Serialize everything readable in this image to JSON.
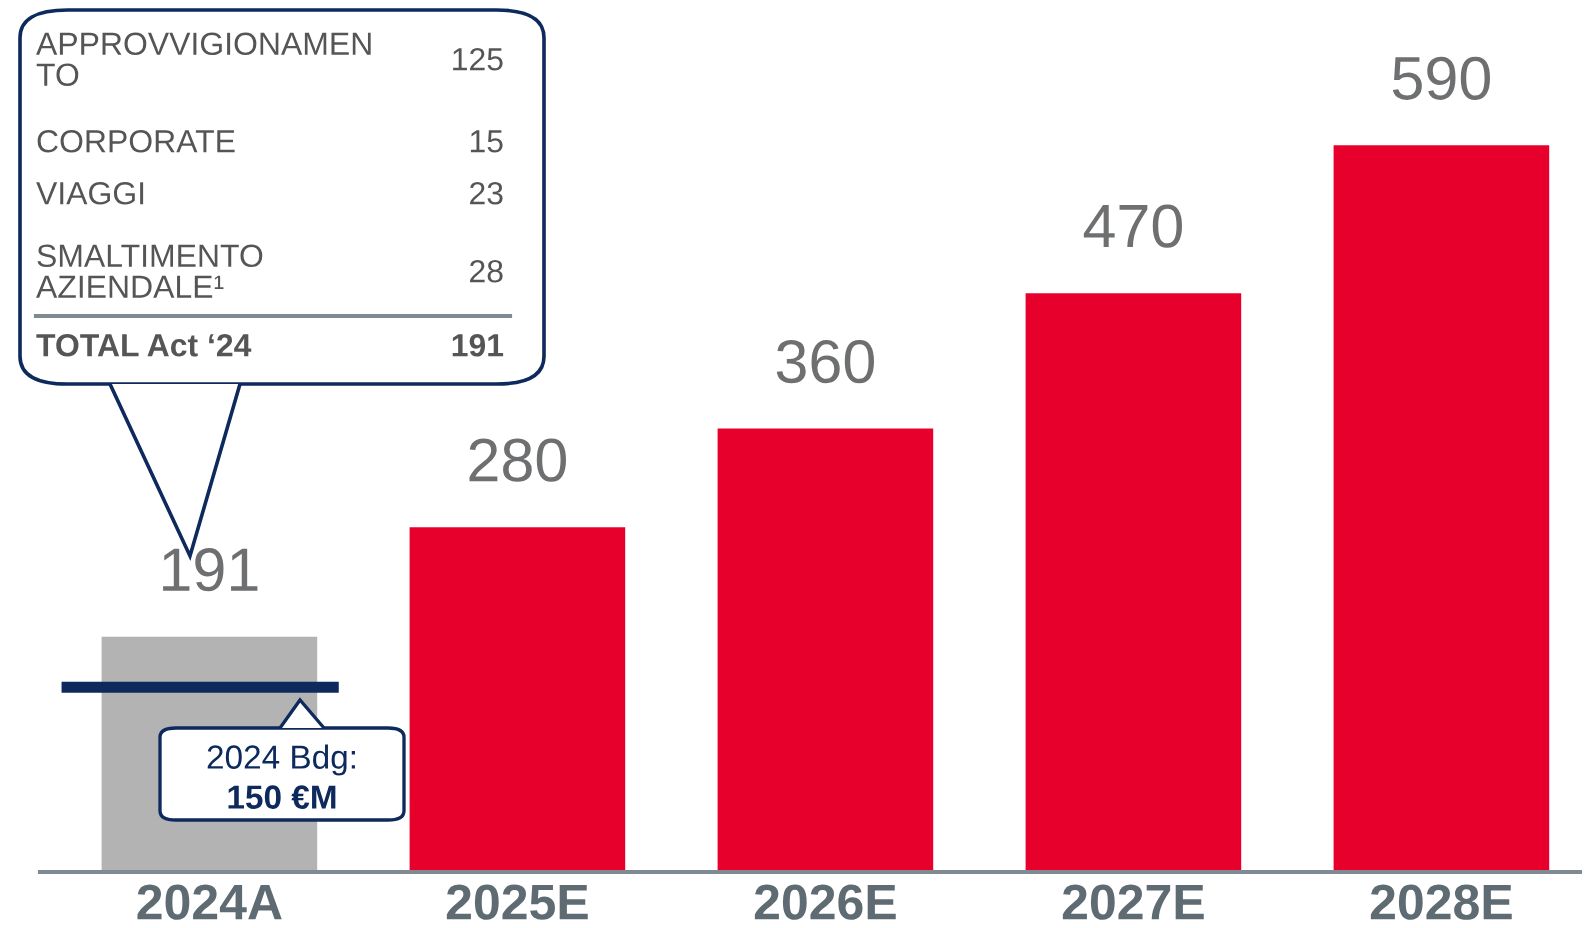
{
  "chart_data": {
    "type": "bar",
    "categories": [
      "2024A",
      "2025E",
      "2026E",
      "2027E",
      "2028E"
    ],
    "values": [
      191,
      280,
      360,
      470,
      590
    ],
    "colors": [
      "#b3b3b3",
      "#e8002d",
      "#e8002d",
      "#e8002d",
      "#e8002d"
    ],
    "data_labels": true,
    "ref_lines": [
      {
        "axis": "y",
        "value": 150,
        "label": "2024 Bdg:\n150 €M",
        "color": "#0e2a5c"
      }
    ],
    "annotations": [
      "APPROVVIGIONAMEN\nTO",
      "125",
      "CORPORATE",
      "15",
      "VIAGGI",
      "23",
      "SMALTIMENTO\nAZIENDALE¹",
      "28",
      "TOTAL Act ‘24",
      "191"
    ],
    "grid": false
  }
}
